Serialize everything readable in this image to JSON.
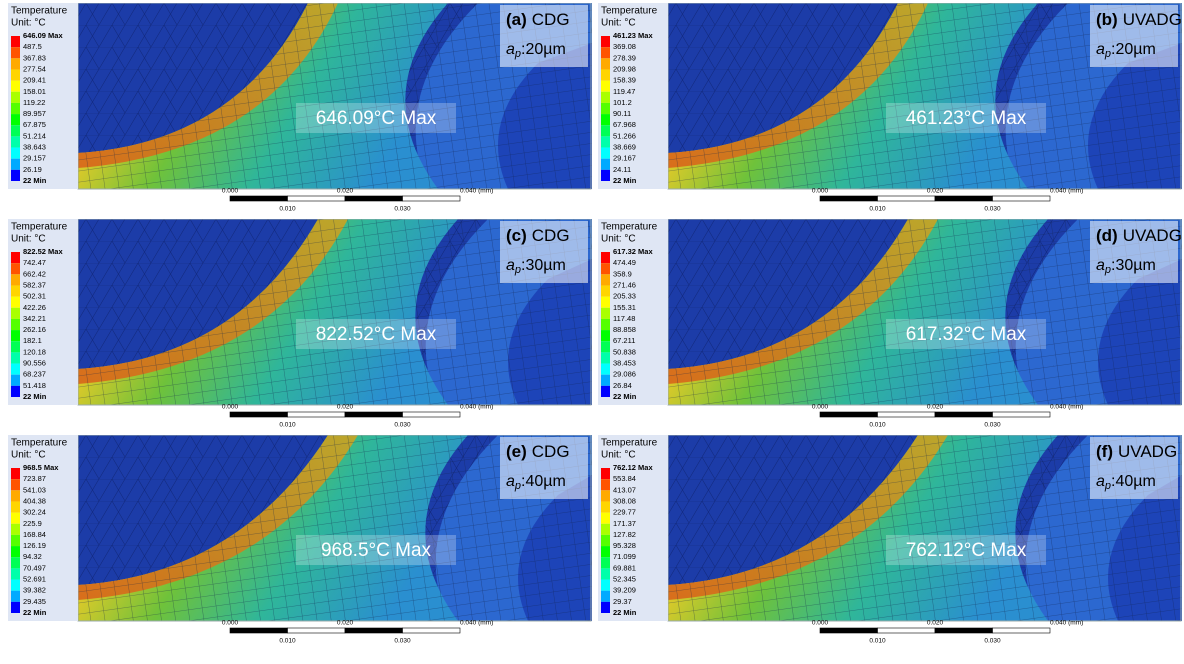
{
  "scale_bar": {
    "l0": "0.000",
    "l2": "0.020",
    "l4": "0.040 (mm)",
    "l1": "0.010",
    "l3": "0.030"
  },
  "panels": [
    {
      "legend_title": "Temperature",
      "unit": "Unit: °C",
      "legend": [
        "646.09 Max",
        "487.5",
        "367.83",
        "277.54",
        "209.41",
        "158.01",
        "119.22",
        "89.957",
        "67.875",
        "51.214",
        "38.643",
        "29.157",
        "26.19",
        "22 Min"
      ],
      "label": "(a)",
      "method": "CDG",
      "ap_symbol": "a",
      "ap_subscript": "p",
      "depth": ":20µm",
      "max_label": "646.09°C Max"
    },
    {
      "legend_title": "Temperature",
      "unit": "Unit: °C",
      "legend": [
        "461.23 Max",
        "369.08",
        "278.39",
        "209.98",
        "158.39",
        "119.47",
        "101.2",
        "90.11",
        "67.968",
        "51.266",
        "38.669",
        "29.167",
        "24.11",
        "22 Min"
      ],
      "label": "(b)",
      "method": "UVADG",
      "ap_symbol": "a",
      "ap_subscript": "p",
      "depth": ":20µm",
      "max_label": "461.23°C Max"
    },
    {
      "legend_title": "Temperature",
      "unit": "Unit: °C",
      "legend": [
        "822.52 Max",
        "742.47",
        "662.42",
        "582.37",
        "502.31",
        "422.26",
        "342.21",
        "262.16",
        "182.1",
        "120.18",
        "90.556",
        "68.237",
        "51.418",
        "22 Min"
      ],
      "label": "(c)",
      "method": "CDG",
      "ap_symbol": "a",
      "ap_subscript": "p",
      "depth": ":30µm",
      "max_label": "822.52°C Max"
    },
    {
      "legend_title": "Temperature",
      "unit": "Unit: °C",
      "legend": [
        "617.32 Max",
        "474.49",
        "358.9",
        "271.46",
        "205.33",
        "155.31",
        "117.48",
        "88.858",
        "67.211",
        "50.838",
        "38.453",
        "29.086",
        "26.84",
        "22 Min"
      ],
      "label": "(d)",
      "method": "UVADG",
      "ap_symbol": "a",
      "ap_subscript": "p",
      "depth": ":30µm",
      "max_label": "617.32°C Max"
    },
    {
      "legend_title": "Temperature",
      "unit": "Unit: °C",
      "legend": [
        "968.5 Max",
        "723.87",
        "541.03",
        "404.38",
        "302.24",
        "225.9",
        "168.84",
        "126.19",
        "94.32",
        "70.497",
        "52.691",
        "39.382",
        "29.435",
        "22 Min"
      ],
      "label": "(e)",
      "method": "CDG",
      "ap_symbol": "a",
      "ap_subscript": "p",
      "depth": ":40µm",
      "max_label": "968.5°C Max"
    },
    {
      "legend_title": "Temperature",
      "unit": "Unit: °C",
      "legend": [
        "762.12 Max",
        "553.84",
        "413.07",
        "308.08",
        "229.77",
        "171.37",
        "127.82",
        "95.328",
        "71.099",
        "69.881",
        "52.345",
        "39.209",
        "29.37",
        "22 Min"
      ],
      "label": "(f)",
      "method": "UVADG",
      "ap_symbol": "a",
      "ap_subscript": "p",
      "depth": ":40µm",
      "max_label": "762.12°C Max"
    }
  ]
}
